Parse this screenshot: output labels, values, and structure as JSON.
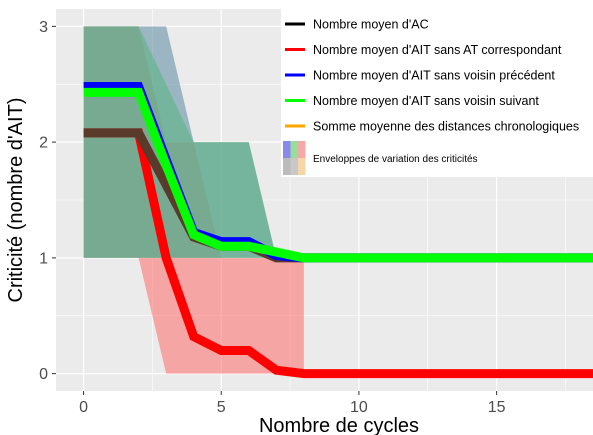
{
  "chart_data": {
    "type": "line",
    "xlabel": "Nombre de cycles",
    "ylabel": "Criticité (nombre d'AIT)",
    "xlim": [
      -1,
      18.5
    ],
    "ylim": [
      -0.15,
      3.15
    ],
    "x_ticks": [
      0,
      5,
      10,
      15
    ],
    "y_ticks": [
      0,
      1,
      2,
      3
    ],
    "grid": true,
    "legend_position": "top-right",
    "series": [
      {
        "name": "Nombre moyen d'AC",
        "color": "#000000",
        "x": [
          0,
          2,
          3,
          4,
          5,
          6,
          7,
          8,
          18.5
        ],
        "y": [
          2.08,
          2.08,
          1.63,
          1.18,
          1.1,
          1.1,
          1.0,
          1.0,
          1.0
        ]
      },
      {
        "name": "Nombre moyen d'AIT sans AT correspondant",
        "color": "#ff0000",
        "x": [
          0,
          2,
          3,
          4,
          5,
          6,
          7,
          8,
          18.5
        ],
        "y": [
          2.08,
          2.08,
          1.0,
          0.32,
          0.2,
          0.2,
          0.03,
          0.0,
          0.0
        ]
      },
      {
        "name": "Nombre moyen d'AIT sans voisin précédent",
        "color": "#0000ff",
        "x": [
          0,
          2,
          3,
          4,
          5,
          6,
          7,
          8,
          18.5
        ],
        "y": [
          2.48,
          2.48,
          1.85,
          1.22,
          1.14,
          1.14,
          1.02,
          1.0,
          1.0
        ]
      },
      {
        "name": "Nombre moyen d'AIT sans voisin suivant",
        "color": "#00ff00",
        "x": [
          0,
          2,
          3,
          4,
          5,
          6,
          7,
          8,
          18.5
        ],
        "y": [
          2.43,
          2.43,
          1.8,
          1.2,
          1.1,
          1.1,
          1.05,
          1.0,
          1.0
        ]
      },
      {
        "name": "Somme moyenne des distances chronologiques",
        "color": "#ffa500",
        "x": [],
        "y": []
      }
    ],
    "envelopes": [
      {
        "color": "#ff6b6b",
        "opacity": 0.55,
        "x": [
          0,
          2,
          3,
          4,
          5,
          6,
          7,
          8
        ],
        "lower": [
          1,
          1,
          0,
          0,
          0,
          0,
          0,
          0
        ],
        "upper": [
          3,
          3,
          2,
          2,
          1,
          1,
          1,
          1
        ]
      },
      {
        "color": "#6fe86f",
        "opacity": 0.65,
        "x": [
          0,
          2,
          4,
          5,
          6,
          7,
          8
        ],
        "lower": [
          1,
          1,
          1,
          1,
          1,
          1,
          1
        ],
        "upper": [
          3,
          3,
          2,
          2,
          2,
          1,
          1
        ]
      },
      {
        "color": "#5a8aa0",
        "opacity": 0.55,
        "x": [
          0,
          3,
          4,
          5,
          6,
          7,
          8
        ],
        "lower": [
          1,
          1,
          1,
          1,
          1,
          1,
          1
        ],
        "upper": [
          3,
          3,
          2,
          2,
          2,
          1,
          1
        ]
      }
    ],
    "legend": {
      "entries": [
        "Nombre moyen d'AC",
        "Nombre moyen d'AIT sans AT correspondant",
        "Nombre moyen d'AIT sans voisin précédent",
        "Nombre moyen d'AIT sans voisin suivant",
        "Somme moyenne des distances chronologiques"
      ],
      "envelope_label": "Enveloppes de variation des criticités",
      "envelope_swatches": [
        "#8888ee",
        "#99dd99",
        "#f4a8a8",
        "#bbbbbb",
        "#c8c8c8",
        "#f5d6a8"
      ]
    }
  }
}
